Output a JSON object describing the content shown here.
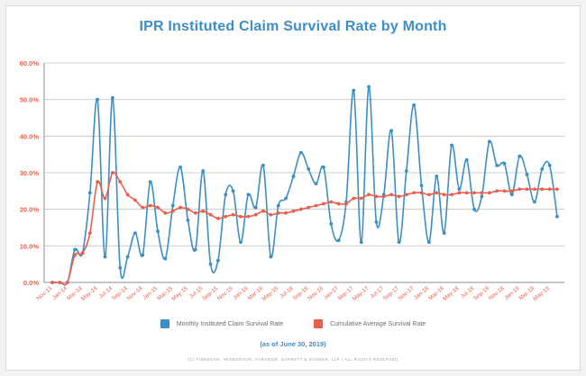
{
  "colors": {
    "monthly": "#3d8ec4",
    "cumulative": "#e8604d",
    "ytick": "#e8604d",
    "xtick": "#e8604d",
    "grid": "#bfc1c4",
    "axis": "#8b8d90"
  },
  "footer": "(C) FINNEGAN, HENDERSON, FARABOW, GARRETT & DUNNER, LLP | ALL RIGHTS RESERVED",
  "chart_data": {
    "type": "line",
    "title": "IPR Instituted Claim Survival Rate by Month",
    "subtitle": "(as of June 30, 2019)",
    "ylim": [
      0,
      60
    ],
    "y_ticks": [
      "0.0%",
      "10.0%",
      "20.0%",
      "30.0%",
      "40.0%",
      "50.0%",
      "60.0%"
    ],
    "grid": true,
    "legend_position": "bottom",
    "x_tick_labels": [
      "Nov-13",
      "Jan-14",
      "Mar-14",
      "May-14",
      "Jul-14",
      "Sep-14",
      "Nov-14",
      "Jan-15",
      "Mar-15",
      "May-15",
      "Jul-15",
      "Sep-15",
      "Nov-15",
      "Jan-16",
      "Mar-16",
      "May-16",
      "Jul-16",
      "Sep-16",
      "Nov-16",
      "Jan-17",
      "Mar-17",
      "May-17",
      "Jul-17",
      "Sep-17",
      "Nov-17",
      "Jan-18",
      "Mar-18",
      "May-18",
      "Jul-18",
      "Sep-18",
      "Nov-18",
      "Jan-19",
      "Mar-19",
      "May-19"
    ],
    "x_tick_step_months": 2,
    "x_start": "Nov-13",
    "series": [
      {
        "name": "Monthly Instituted Claim Survival Rate",
        "values": [
          0,
          0,
          0,
          9,
          8,
          24.5,
          50,
          7,
          50.5,
          4,
          7,
          13.5,
          7.5,
          27.5,
          14,
          6.5,
          21,
          31.5,
          17,
          9,
          30.5,
          5,
          6,
          24,
          25,
          11,
          24,
          20.5,
          32,
          7,
          21,
          23,
          29,
          35.5,
          31,
          27,
          31.5,
          16,
          11.5,
          22,
          52.5,
          11,
          53.5,
          16.5,
          24,
          41.5,
          11,
          30.5,
          48.5,
          26.5,
          11,
          29,
          13.5,
          37.5,
          25.5,
          33.5,
          20,
          23.5,
          38.5,
          32,
          32.5,
          24,
          34.5,
          29.5,
          22,
          31,
          32,
          18
        ]
      },
      {
        "name": "Cumulative Average Survival Rate",
        "values": [
          0,
          0,
          0,
          7.5,
          8,
          13.5,
          27.5,
          23,
          30,
          27.5,
          24,
          22.5,
          20.5,
          21,
          20.5,
          19,
          19.5,
          20.5,
          20,
          19,
          19.5,
          18.5,
          17.5,
          18,
          18.5,
          18,
          18,
          18.5,
          19.5,
          18.5,
          19,
          19,
          19.5,
          20,
          20.5,
          21,
          21.5,
          22,
          21.5,
          21.5,
          23,
          23,
          24,
          23.5,
          23.5,
          24,
          23.5,
          24,
          24.5,
          24.5,
          24,
          24.5,
          24,
          24,
          24.5,
          24.5,
          24.5,
          24.5,
          24.5,
          25,
          25,
          25,
          25.5,
          25.5,
          25.5,
          25.5,
          25.5,
          25.5
        ]
      }
    ]
  }
}
